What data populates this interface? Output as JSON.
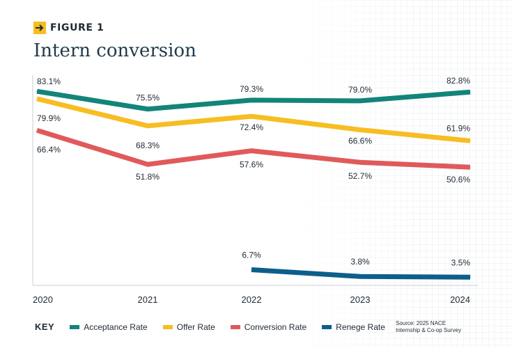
{
  "figure_label": "FIGURE 1",
  "title": "Intern conversion",
  "legend": {
    "key_label": "KEY"
  },
  "source": {
    "line1": "Source: 2025 NACE",
    "line2": "Internship & Co-op Survey"
  },
  "chart_data": {
    "type": "line",
    "x": [
      "2020",
      "2021",
      "2022",
      "2023",
      "2024"
    ],
    "ylim": [
      0,
      90
    ],
    "grid": false,
    "legend_placement": "bottom",
    "series": [
      {
        "name": "Acceptance Rate",
        "color": "#12857a",
        "values": [
          83.1,
          75.5,
          79.3,
          79.0,
          82.8
        ],
        "labels": [
          "83.1%",
          "75.5%",
          "79.3%",
          "79.0%",
          "82.8%"
        ]
      },
      {
        "name": "Offer Rate",
        "color": "#f7bd22",
        "values": [
          79.9,
          68.3,
          72.4,
          66.6,
          61.9
        ],
        "labels": [
          "79.9%",
          "68.3%",
          "72.4%",
          "66.6%",
          "61.9%"
        ]
      },
      {
        "name": "Conversion Rate",
        "color": "#e05a5b",
        "values": [
          66.4,
          51.8,
          57.6,
          52.7,
          50.6
        ],
        "labels": [
          "66.4%",
          "51.8%",
          "57.6%",
          "52.7%",
          "50.6%"
        ]
      },
      {
        "name": "Renege Rate",
        "color": "#0c5f8c",
        "values": [
          null,
          null,
          6.7,
          3.8,
          3.5
        ],
        "labels": [
          null,
          null,
          "6.7%",
          "3.8%",
          "3.5%"
        ]
      }
    ]
  }
}
